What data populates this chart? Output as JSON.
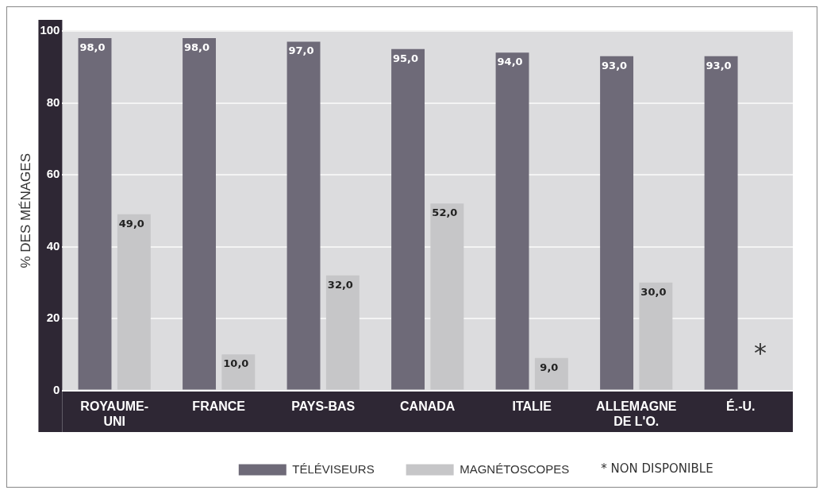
{
  "chart_data": {
    "type": "bar",
    "ylabel": "% DES MÉNAGES",
    "categories": [
      "ROYAUME-UNI",
      "FRANCE",
      "PAYS-BAS",
      "CANADA",
      "ITALIE",
      "ALLEMAGNE DE L'O.",
      "É.-U."
    ],
    "series": [
      {
        "name": "TÉLÉVISEURS",
        "color": "#6e6a78",
        "values": [
          98,
          98,
          97,
          95,
          94,
          93,
          93
        ],
        "value_labels": [
          "98,0",
          "98,0",
          "97,0",
          "95,0",
          "94,0",
          "93,0",
          "93,0"
        ]
      },
      {
        "name": "MAGNÉTOSCOPES",
        "color": "#c6c6c8",
        "values": [
          49,
          10,
          32,
          52,
          9,
          30,
          null
        ],
        "value_labels": [
          "49,0",
          "10,0",
          "32,0",
          "52,0",
          "9,0",
          "30,0",
          null
        ]
      }
    ],
    "ylim": [
      0,
      100
    ],
    "yticks": [
      0,
      20,
      40,
      60,
      80,
      100
    ],
    "grid": "y",
    "legend": "bottom",
    "annotations": [
      "*",
      "* NON DISPONIBLE"
    ]
  }
}
